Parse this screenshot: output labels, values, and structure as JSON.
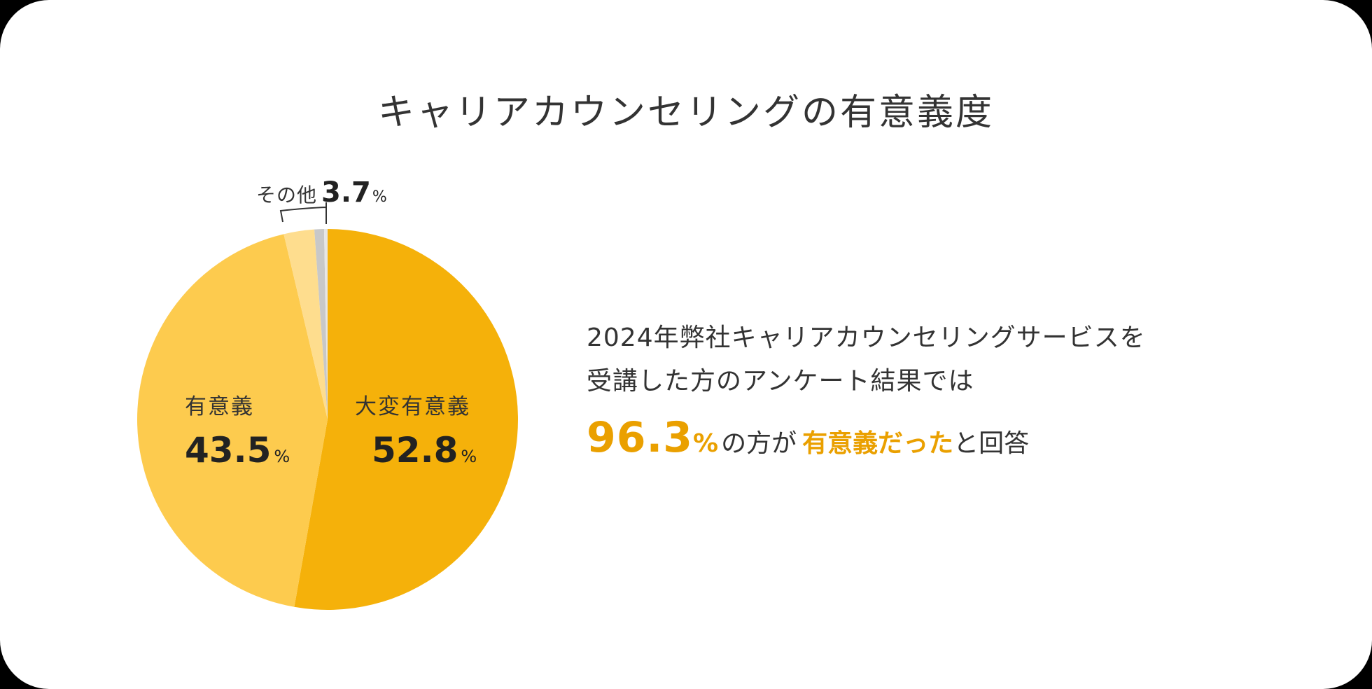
{
  "title": "キャリアカウンセリングの有意義度",
  "colors": {
    "very_meaningful": "#F5B10A",
    "meaningful": "#FDCB4E",
    "other_light": "#FEDD8E",
    "other_gray": "#C8C8C8",
    "other_pale": "#E6E6E6",
    "accent_text": "#EAA000",
    "text": "#333333"
  },
  "slices": {
    "very_meaningful": {
      "name": "大変有意義",
      "value": "52.8",
      "unit": "%"
    },
    "meaningful": {
      "name": "有意義",
      "value": "43.5",
      "unit": "%"
    },
    "other": {
      "name": "その他",
      "value": "3.7",
      "unit": "%"
    }
  },
  "description": {
    "line1": "2024年弊社キャリアカウンセリングサービスを",
    "line2": "受講した方のアンケート結果では"
  },
  "result": {
    "value": "96.3",
    "unit": "%",
    "mid": "の方が",
    "highlight": "有意義だった",
    "tail": "と回答"
  },
  "chart_data": {
    "type": "pie",
    "title": "キャリアカウンセリングの有意義度",
    "categories": [
      "大変有意義",
      "有意義",
      "その他"
    ],
    "values": [
      52.8,
      43.5,
      3.7
    ],
    "colors": [
      "#F5B10A",
      "#FDCB4E",
      "#FEDD8E"
    ],
    "start_angle": "12 o'clock, clockwise",
    "annotations": [
      "96.3%の方が有意義だったと回答"
    ],
    "legend": "none (direct labels)"
  }
}
